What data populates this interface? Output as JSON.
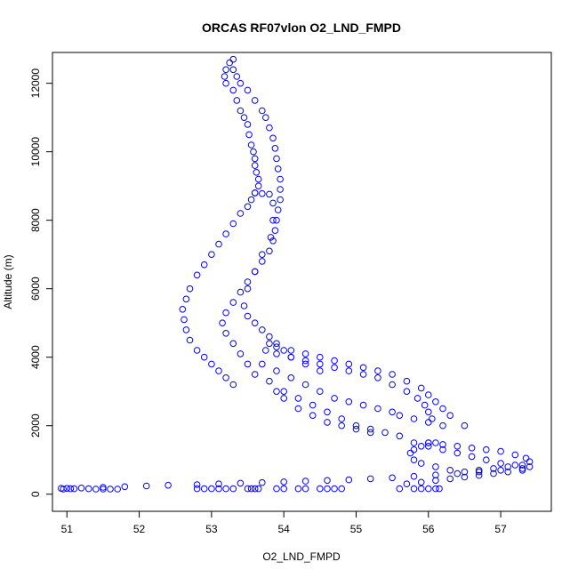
{
  "chart_data": {
    "type": "scatter",
    "title": "ORCAS RF07vlon O2_LND_FMPD",
    "xlabel": "O2_LND_FMPD",
    "ylabel": "Altitude (m)",
    "xlim": [
      50.8,
      57.7
    ],
    "ylim": [
      -500,
      12900
    ],
    "xticks": [
      51,
      52,
      53,
      54,
      55,
      56,
      57
    ],
    "yticks": [
      0,
      2000,
      4000,
      6000,
      8000,
      10000,
      12000
    ],
    "grid": false,
    "marker": "open-circle",
    "series": [
      {
        "color": "#0000ff",
        "x": [
          53.3,
          53.25,
          53.2,
          53.18,
          53.2,
          53.3,
          53.35,
          53.4,
          53.45,
          53.5,
          53.52,
          53.55,
          53.58,
          53.6,
          53.6,
          53.62,
          53.65,
          53.65,
          53.6,
          53.55,
          53.5,
          53.4,
          53.3,
          53.2,
          53.1,
          53.0,
          52.9,
          52.8,
          52.7,
          52.65,
          52.6,
          52.62,
          52.65,
          52.7,
          52.8,
          52.9,
          53.0,
          53.1,
          53.2,
          53.3,
          53.3,
          53.35,
          53.4,
          53.5,
          53.6,
          53.7,
          53.75,
          53.8,
          53.85,
          53.88,
          53.9,
          53.92,
          53.95,
          53.95,
          53.95,
          53.92,
          53.9,
          53.88,
          53.85,
          53.8,
          53.7,
          53.6,
          53.5,
          53.4,
          53.3,
          53.2,
          53.15,
          53.2,
          53.3,
          53.4,
          53.5,
          53.6,
          53.7,
          53.8,
          53.85,
          53.85,
          53.82,
          53.7,
          53.6,
          53.5,
          53.45,
          53.5,
          53.6,
          53.7,
          53.8,
          53.9,
          54.0,
          54.1,
          54.3,
          54.5,
          53.8,
          53.9,
          54.1,
          54.3,
          54.5,
          54.7,
          54.9,
          55.1,
          55.3,
          55.5,
          55.7,
          55.9,
          56.0,
          56.1,
          56.2,
          56.3,
          56.5,
          53.75,
          53.9,
          54.1,
          54.3,
          54.5,
          54.7,
          54.9,
          55.1,
          55.3,
          55.5,
          55.7,
          55.85,
          55.95,
          56.0,
          56.05,
          53.7,
          53.9,
          54.1,
          54.3,
          54.5,
          54.7,
          54.9,
          55.1,
          55.3,
          55.5,
          55.6,
          55.8,
          56.0,
          56.2,
          53.6,
          53.8,
          54.0,
          54.2,
          54.4,
          54.6,
          54.8,
          55.0,
          55.2,
          55.4,
          55.6,
          53.9,
          54.0,
          54.2,
          54.4,
          54.6,
          54.8,
          55.0,
          55.2,
          55.8,
          56.0,
          56.1,
          56.2,
          56.4,
          56.6,
          56.8,
          57.0,
          57.2,
          57.35,
          57.4,
          57.3,
          57.1,
          56.9,
          56.7,
          56.5,
          56.3,
          56.1,
          55.9,
          55.8,
          55.75,
          55.8,
          55.9,
          56.0,
          56.0,
          56.2,
          56.4,
          56.6,
          56.8,
          57.0,
          57.2,
          57.4,
          57.3,
          57.1,
          56.9,
          56.7,
          56.5,
          56.3,
          56.1,
          55.9,
          55.7,
          50.95,
          51.2,
          51.5,
          51.8,
          52.1,
          52.4,
          52.8,
          53.1,
          53.4,
          53.7,
          54.0,
          54.3,
          54.6,
          54.9,
          55.2,
          55.5,
          55.8,
          56.1,
          56.4,
          56.7,
          57.0,
          57.3,
          51.4,
          51.5,
          51.6,
          51.7,
          52.8,
          52.9,
          53.0,
          53.1,
          53.2,
          53.3,
          53.5,
          53.55,
          53.6,
          53.65,
          53.9,
          54.0,
          54.2,
          54.3,
          54.5,
          54.6,
          54.7,
          54.8,
          55.6,
          55.8,
          55.9,
          56.0,
          56.1,
          56.15,
          50.92,
          51.0,
          51.05,
          51.1,
          51.3
        ],
        "y": [
          12700,
          12600,
          12400,
          12200,
          12000,
          11800,
          11500,
          11200,
          11000,
          10800,
          10500,
          10200,
          10000,
          9800,
          9600,
          9400,
          9200,
          9000,
          8800,
          8600,
          8400,
          8200,
          7900,
          7600,
          7300,
          7000,
          6700,
          6400,
          6000,
          5700,
          5400,
          5100,
          4800,
          4500,
          4200,
          4000,
          3800,
          3600,
          3400,
          3200,
          12400,
          12200,
          12000,
          11800,
          11500,
          11200,
          11000,
          10700,
          10400,
          10100,
          9800,
          9500,
          9200,
          8900,
          8600,
          8300,
          8000,
          7700,
          7400,
          7100,
          6800,
          6500,
          6200,
          5900,
          5600,
          5300,
          5000,
          4700,
          4400,
          4100,
          3800,
          8800,
          8780,
          8760,
          8500,
          8000,
          7500,
          7000,
          6500,
          6000,
          5500,
          5200,
          5000,
          4800,
          4600,
          4400,
          4200,
          4000,
          3800,
          3600,
          4400,
          4300,
          4200,
          4100,
          4000,
          3900,
          3800,
          3700,
          3600,
          3500,
          3300,
          3100,
          2900,
          2700,
          2500,
          2300,
          2000,
          4200,
          4100,
          4000,
          3900,
          3800,
          3700,
          3600,
          3500,
          3400,
          3200,
          3000,
          2800,
          2600,
          2400,
          2200,
          3800,
          3600,
          3400,
          3200,
          3000,
          2800,
          2700,
          2600,
          2500,
          2400,
          2300,
          2200,
          2100,
          2000,
          3500,
          3300,
          3000,
          2800,
          2600,
          2400,
          2200,
          2000,
          1900,
          1800,
          1700,
          3000,
          2800,
          2500,
          2300,
          2100,
          2000,
          1900,
          1800,
          1500,
          1500,
          1500,
          1450,
          1400,
          1350,
          1300,
          1250,
          1150,
          1050,
          950,
          850,
          800,
          750,
          700,
          650,
          700,
          800,
          900,
          1000,
          1200,
          1300,
          1400,
          1500,
          1400,
          1300,
          1200,
          1100,
          1000,
          900,
          850,
          800,
          700,
          650,
          600,
          550,
          500,
          450,
          400,
          350,
          300,
          150,
          180,
          200,
          220,
          240,
          260,
          280,
          300,
          320,
          340,
          360,
          380,
          400,
          420,
          450,
          480,
          520,
          560,
          600,
          650,
          700,
          750,
          150,
          150,
          150,
          150,
          160,
          160,
          160,
          160,
          160,
          160,
          160,
          160,
          160,
          160,
          160,
          160,
          160,
          160,
          160,
          160,
          160,
          160,
          160,
          160,
          160,
          160,
          160,
          160,
          170,
          170,
          160,
          160,
          160
        ]
      }
    ]
  }
}
